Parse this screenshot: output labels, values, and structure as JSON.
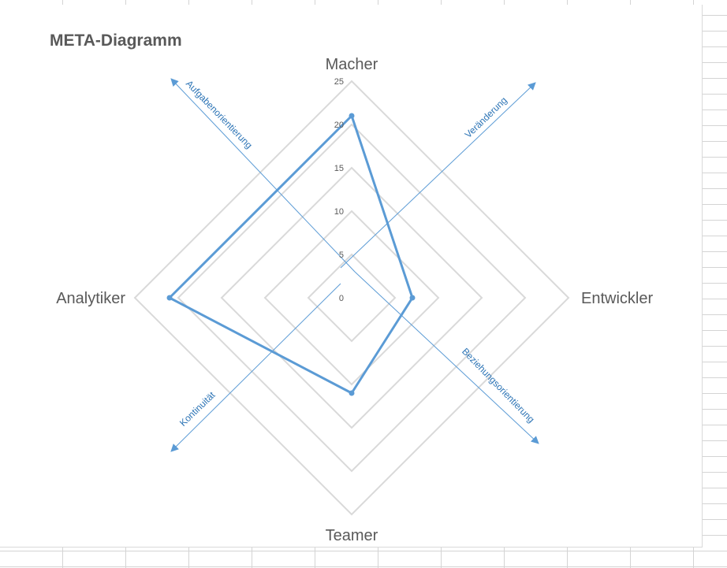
{
  "chart_data": {
    "type": "radar",
    "title": "META-Diagramm",
    "categories": [
      "Macher",
      "Entwickler",
      "Teamer",
      "Analytiker"
    ],
    "series": [
      {
        "values": [
          21,
          7,
          11,
          21
        ]
      }
    ],
    "rmax": 25,
    "ticks": [
      0,
      5,
      10,
      15,
      20,
      25
    ],
    "grid": true,
    "legend": "none",
    "axis_annotations": [
      "Aufgabenorientierung",
      "Veränderung",
      "Kontinuität",
      "Beziehungsorientierung"
    ]
  },
  "colors": {
    "series": "#5b9bd5",
    "grid": "#d9d9d9",
    "text": "#595959",
    "tick_text": "#595959"
  }
}
